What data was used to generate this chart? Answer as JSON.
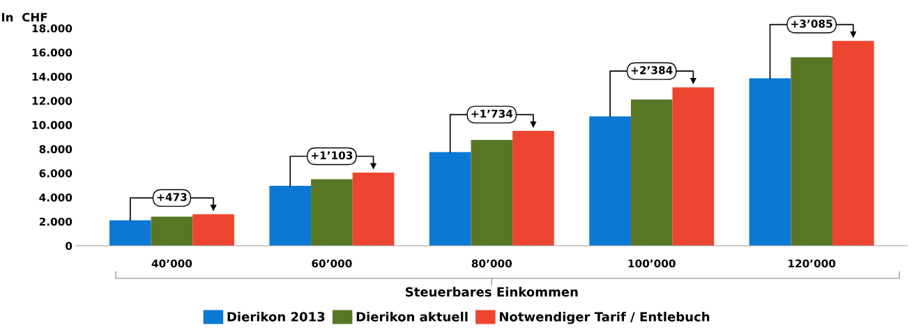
{
  "chart_data": {
    "type": "bar",
    "ylabel": "In  CHF",
    "xlabel": "Steuerbares Einkommen",
    "categories": [
      "40’000",
      "60’000",
      "80’000",
      "100’000",
      "120’000"
    ],
    "series": [
      {
        "name": "Dierikon 2013",
        "color": "#0a78d4",
        "values": [
          2100,
          4950,
          7750,
          10700,
          13850
        ]
      },
      {
        "name": "Dierikon aktuell",
        "color": "#577725",
        "values": [
          2400,
          5500,
          8750,
          12100,
          15600
        ]
      },
      {
        "name": "Notwendiger Tarif / Entlebuch",
        "color": "#ee4530",
        "values": [
          2600,
          6050,
          9500,
          13100,
          16950
        ]
      }
    ],
    "ylim": [
      0,
      18000
    ],
    "yticks": [
      {
        "value": 0,
        "label": "0"
      },
      {
        "value": 2000,
        "label": "2.000"
      },
      {
        "value": 4000,
        "label": "4.000"
      },
      {
        "value": 6000,
        "label": "6.000"
      },
      {
        "value": 8000,
        "label": "8.000"
      },
      {
        "value": 10000,
        "label": "10.000"
      },
      {
        "value": 12000,
        "label": "12.000"
      },
      {
        "value": 14000,
        "label": "14.000"
      },
      {
        "value": 16000,
        "label": "16.000"
      },
      {
        "value": 18000,
        "label": "18.000"
      }
    ],
    "annotations": [
      "+473",
      "+1’103",
      "+1’734",
      "+2’384",
      "+3’085"
    ],
    "grid": false,
    "legend": "bottom"
  }
}
